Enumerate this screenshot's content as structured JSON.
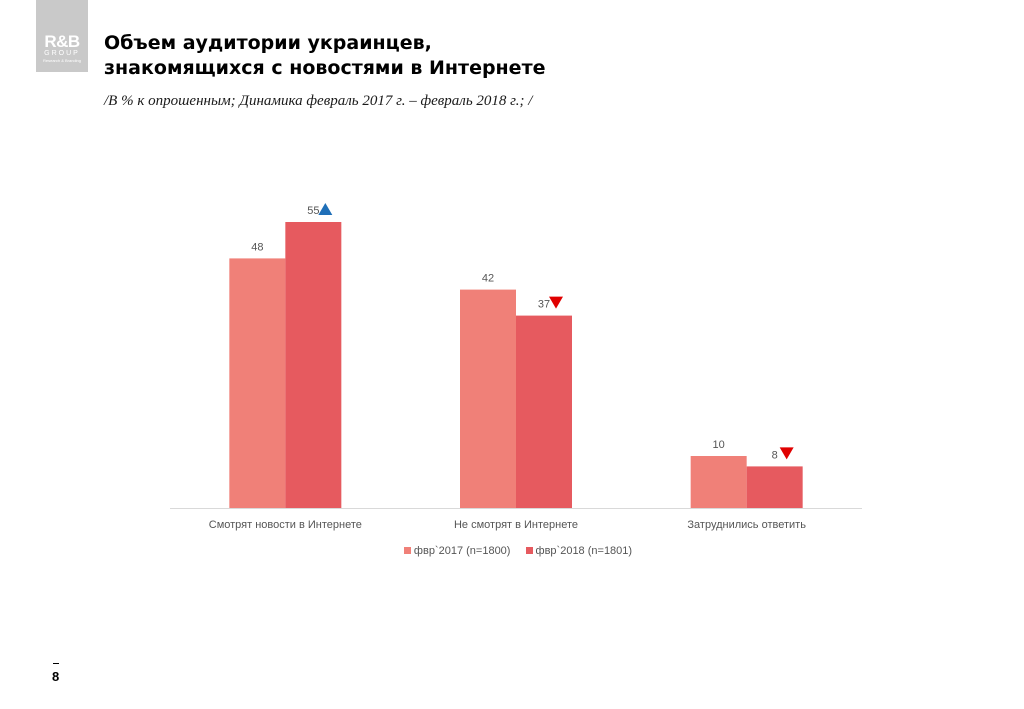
{
  "logo": {
    "line1": "R&B",
    "line2": "GROUP",
    "line3": "Research & Branding"
  },
  "header": {
    "title_line1": "Объем аудитории украинцев,",
    "title_line2": "знакомящихся с новостями в Интернете",
    "subtitle": "/В % к опрошенным; Динамика февраль 2017 г. – февраль 2018 г.; /"
  },
  "chart_data": {
    "type": "bar",
    "categories": [
      "Смотрят новости в Интернете",
      "Не смотрят в Интернете",
      "Затруднились ответить"
    ],
    "series": [
      {
        "name": "фвр`2017 (n=1800)",
        "values": [
          48,
          42,
          10
        ],
        "color": "#f08078"
      },
      {
        "name": "фвр`2018 (n=1801)",
        "values": [
          55,
          37,
          8
        ],
        "color": "#e65a5f"
      }
    ],
    "change_markers": [
      {
        "series": 1,
        "category": 0,
        "direction": "up",
        "color": "#1f6fb8"
      },
      {
        "series": 1,
        "category": 1,
        "direction": "down",
        "color": "#e00000"
      },
      {
        "series": 1,
        "category": 2,
        "direction": "down",
        "color": "#e00000"
      }
    ],
    "grid": false,
    "legend_position": "bottom"
  },
  "page_number": "8"
}
